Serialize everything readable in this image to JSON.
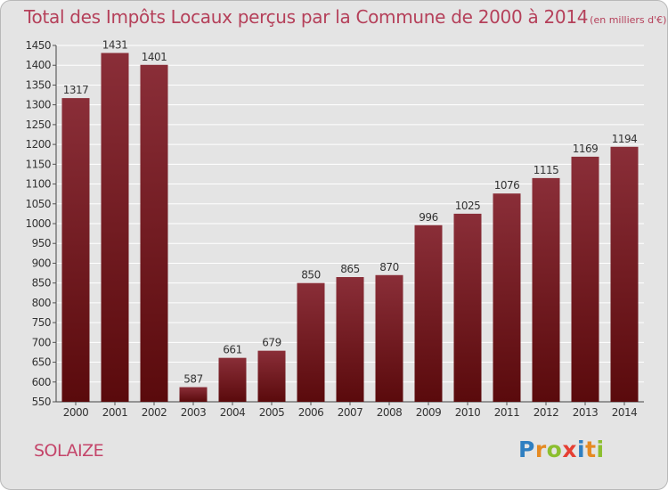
{
  "title": "Total des Impôts Locaux perçus par la Commune de 2000 à 2014",
  "unit_note": "(en milliers d'€)",
  "commune": "SOLAIZE",
  "brand": {
    "text": "Proxiti",
    "letters": [
      {
        "ch": "P",
        "color": "#2f7fc1"
      },
      {
        "ch": "r",
        "color": "#e58a22"
      },
      {
        "ch": "o",
        "color": "#8cbf2f"
      },
      {
        "ch": "x",
        "color": "#e53f33"
      },
      {
        "ch": "i",
        "color": "#2f7fc1"
      },
      {
        "ch": "t",
        "color": "#e58a22"
      },
      {
        "ch": "i",
        "color": "#8cbf2f"
      }
    ]
  },
  "colors": {
    "bar_top": "#8a2e38",
    "bar_bottom": "#5a0a0c",
    "title": "#b5405a",
    "grid": "#ffffff",
    "background": "#e4e4e4"
  },
  "chart_data": {
    "type": "bar",
    "categories": [
      "2000",
      "2001",
      "2002",
      "2003",
      "2004",
      "2005",
      "2006",
      "2007",
      "2008",
      "2009",
      "2010",
      "2011",
      "2012",
      "2013",
      "2014"
    ],
    "values": [
      1317,
      1431,
      1401,
      587,
      661,
      679,
      850,
      865,
      870,
      996,
      1025,
      1076,
      1115,
      1169,
      1194
    ],
    "title": "Total des Impôts Locaux perçus par la Commune de 2000 à 2014",
    "xlabel": "",
    "ylabel": "",
    "ylim": [
      550,
      1450
    ],
    "yticks": [
      550,
      600,
      650,
      700,
      750,
      800,
      850,
      900,
      950,
      1000,
      1050,
      1100,
      1150,
      1200,
      1250,
      1300,
      1350,
      1400,
      1450
    ],
    "grid": true,
    "data_labels": true
  }
}
